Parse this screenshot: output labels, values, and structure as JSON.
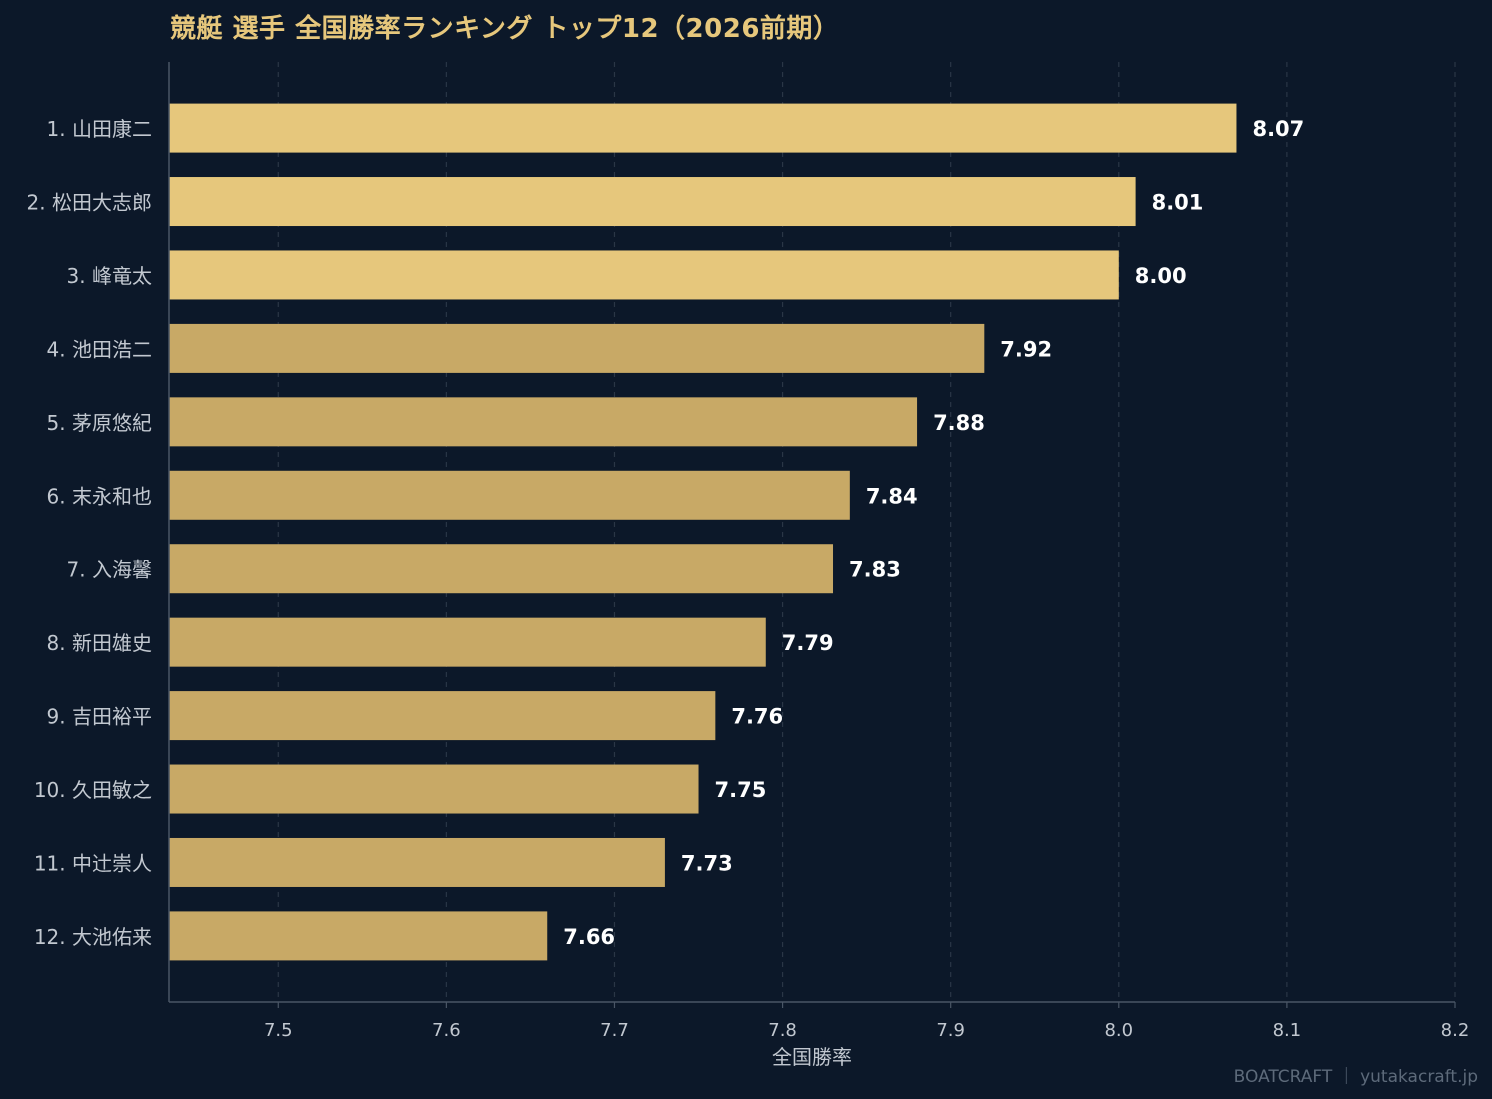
{
  "chart_data": {
    "type": "bar",
    "orientation": "horizontal",
    "title": "競艇 選手 全国勝率ランキング トップ12（2026前期）",
    "xlabel": "全国勝率",
    "ylabel": "",
    "xlim": [
      7.435,
      8.2
    ],
    "xticks": [
      "7.5",
      "7.6",
      "7.7",
      "7.8",
      "7.9",
      "8.0",
      "8.1",
      "8.2"
    ],
    "grid": true,
    "categories": [
      "1. 山田康二",
      "2. 松田大志郎",
      "3. 峰竜太",
      "4. 池田浩二",
      "5. 茅原悠紀",
      "6. 末永和也",
      "7. 入海馨",
      "8. 新田雄史",
      "9. 吉田裕平",
      "10. 久田敏之",
      "11. 中辻崇人",
      "12. 大池佑来"
    ],
    "values": [
      8.07,
      8.01,
      8.0,
      7.92,
      7.88,
      7.84,
      7.83,
      7.79,
      7.76,
      7.75,
      7.73,
      7.66
    ],
    "value_labels": [
      "8.07",
      "8.01",
      "8.00",
      "7.92",
      "7.88",
      "7.84",
      "7.83",
      "7.79",
      "7.76",
      "7.75",
      "7.73",
      "7.66"
    ],
    "colors": {
      "top3": "#e6c77c",
      "rest": "#c8a966",
      "background": "#0c1829",
      "grid": "#2a3646",
      "axis": "#4a5666",
      "tick_text": "#c2c8d0",
      "value_text": "#ffffff",
      "title": "#e6c77c"
    }
  },
  "footer": {
    "credit": "BOATCRAFT ｜ yutakacraft.jp"
  }
}
